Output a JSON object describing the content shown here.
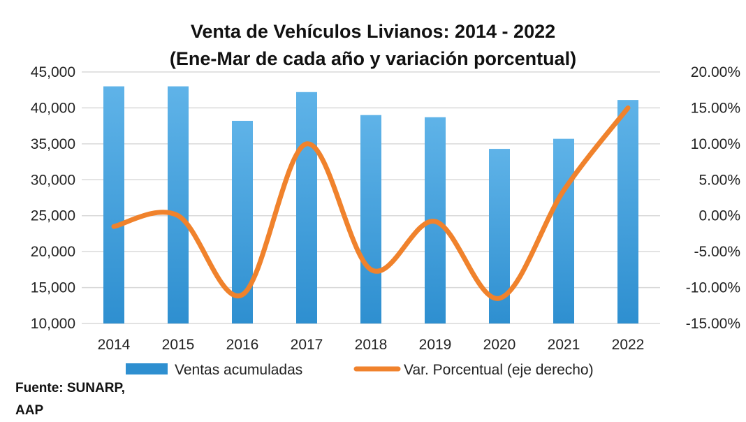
{
  "chart_data": {
    "type": "bar+line",
    "title": "Venta de Vehículos Livianos: 2014 - 2022",
    "subtitle": "(Ene-Mar de cada año y variación porcentual)",
    "categories": [
      "2014",
      "2015",
      "2016",
      "2017",
      "2018",
      "2019",
      "2020",
      "2021",
      "2022"
    ],
    "series": [
      {
        "name": "Ventas acumuladas",
        "type": "bar",
        "axis": "left",
        "color": "#2e8fd0",
        "values": [
          43000,
          43000,
          38200,
          42200,
          39000,
          38700,
          34300,
          35700,
          41100
        ]
      },
      {
        "name": "Var. Porcentual (eje derecho)",
        "type": "line",
        "axis": "right",
        "color": "#f0822c",
        "values": [
          -1.5,
          0.0,
          -11.0,
          10.0,
          -7.5,
          -0.8,
          -11.5,
          3.5,
          15.0
        ]
      }
    ],
    "y_left": {
      "min": 10000,
      "max": 45000,
      "step": 5000,
      "tick_labels": [
        "10,000",
        "15,000",
        "20,000",
        "25,000",
        "30,000",
        "35,000",
        "40,000",
        "45,000"
      ]
    },
    "y_right": {
      "min": -15,
      "max": 20,
      "step": 5,
      "tick_labels": [
        "-15.00%",
        "-10.00%",
        "-5.00%",
        "0.00%",
        "5.00%",
        "10.00%",
        "15.00%",
        "20.00%"
      ]
    },
    "grid": true,
    "legend_position": "bottom"
  },
  "source": {
    "line1": "Fuente: SUNARP,",
    "line2": "AAP"
  }
}
